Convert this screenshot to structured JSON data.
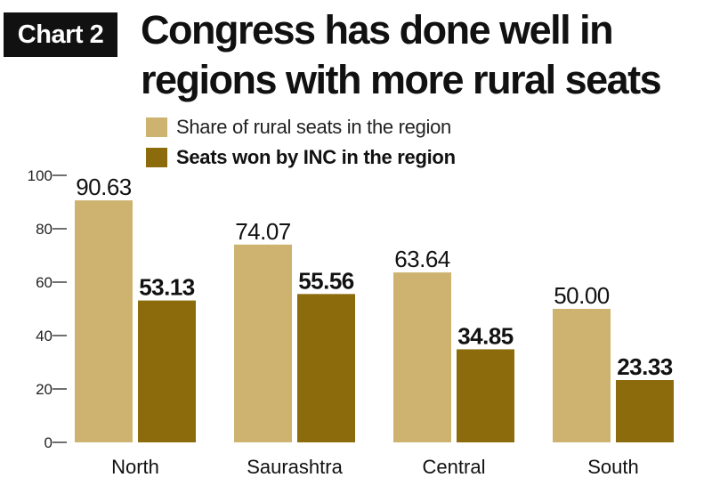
{
  "header": {
    "tag": "Chart 2",
    "title": "Congress has done well in regions with more rural seats"
  },
  "legend": [
    {
      "label": "Share of rural seats in the region",
      "color": "#cdb36f",
      "bold": false
    },
    {
      "label": "Seats won by INC in the region",
      "color": "#8c6b0c",
      "bold": true
    }
  ],
  "chart_data": {
    "type": "bar",
    "categories": [
      "North",
      "Saurashtra",
      "Central",
      "South"
    ],
    "series": [
      {
        "name": "Share of rural seats in the region",
        "values": [
          90.63,
          74.07,
          63.64,
          50.0
        ],
        "labels": [
          "90.63",
          "74.07",
          "63.64",
          "50.00"
        ],
        "color": "#cdb36f"
      },
      {
        "name": "Seats won by INC in the region",
        "values": [
          53.13,
          55.56,
          34.85,
          23.33
        ],
        "labels": [
          "53.13",
          "55.56",
          "34.85",
          "23.33"
        ],
        "color": "#8c6b0c"
      }
    ],
    "yticks": [
      0,
      20,
      40,
      60,
      80,
      100
    ],
    "ylim": [
      0,
      100
    ],
    "xlabel": "",
    "ylabel": "",
    "grid": false,
    "legend_position": "top-left"
  }
}
